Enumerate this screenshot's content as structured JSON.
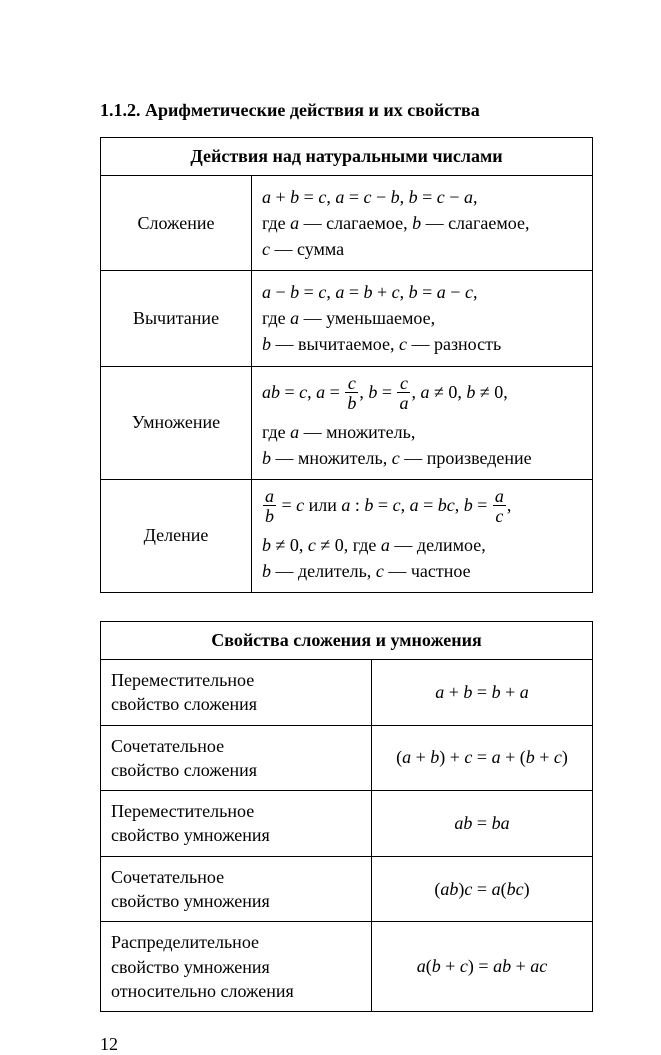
{
  "section_title": "1.1.2. Арифметические действия и их свойства",
  "table1": {
    "header": "Действия над натуральными числами",
    "rows": [
      {
        "op": "Сложение",
        "line1_html": "<span class='math'>a</span> + <span class='math'>b</span> = <span class='math'>c</span>, <span class='math'>a</span> = <span class='math'>c</span> − <span class='math'>b</span>, <span class='math'>b</span> = <span class='math'>c</span> − <span class='math'>a</span>,",
        "line2_html": "где <span class='math'>a</span> — слагаемое, <span class='math'>b</span> — слагаемое,",
        "line3_html": "<span class='math'>c</span> — сумма"
      },
      {
        "op": "Вычитание",
        "line1_html": "<span class='math'>a</span> − <span class='math'>b</span> = <span class='math'>c</span>, <span class='math'>a</span> = <span class='math'>b</span> + <span class='math'>c</span>, <span class='math'>b</span> = <span class='math'>a</span> − <span class='math'>c</span>,",
        "line2_html": "где <span class='math'>a</span> — уменьшаемое,",
        "line3_html": "<span class='math'>b</span> — вычитаемое, <span class='math'>c</span> — разность"
      },
      {
        "op": "Умножение",
        "line1_html": "<span class='math'>ab</span> = <span class='math'>c</span>, <span class='math'>a</span> = <span class='frac'><span class='num'>c</span><span class='den'>b</span></span>, <span class='math'>b</span> = <span class='frac'><span class='num'>c</span><span class='den'>a</span></span>, <span class='math'>a</span> ≠ 0, <span class='math'>b</span> ≠ 0,",
        "line2_html": "где <span class='math'>a</span> — множитель,",
        "line3_html": "<span class='math'>b</span> — множитель, <span class='math'>c</span> — произведение"
      },
      {
        "op": "Деление",
        "line1_html": "<span class='frac'><span class='num'>a</span><span class='den'>b</span></span> = <span class='math'>c</span> или <span class='math'>a</span> : <span class='math'>b</span> = <span class='math'>c</span>, <span class='math'>a</span> = <span class='math'>bc</span>, <span class='math'>b</span> = <span class='frac'><span class='num'>a</span><span class='den'>c</span></span>,",
        "line2_html": "<span class='math'>b</span> ≠ 0, <span class='math'>c</span> ≠ 0, где <span class='math'>a</span> — делимое,",
        "line3_html": "<span class='math'>b</span> — делитель, <span class='math'>c</span> — частное"
      }
    ]
  },
  "table2": {
    "header": "Свойства сложения и умножения",
    "rows": [
      {
        "name_html": "Переместительное<br>свойство сложения",
        "formula_html": "<span class='math'>a</span> + <span class='math'>b</span> = <span class='math'>b</span> + <span class='math'>a</span>"
      },
      {
        "name_html": "Сочетательное<br>свойство сложения",
        "formula_html": "(<span class='math'>a</span> + <span class='math'>b</span>) + <span class='math'>c</span> = <span class='math'>a</span> + (<span class='math'>b</span> + <span class='math'>c</span>)"
      },
      {
        "name_html": "Переместительное<br>свойство умножения",
        "formula_html": "<span class='math'>ab</span> = <span class='math'>ba</span>"
      },
      {
        "name_html": "Сочетательное<br>свойство умножения",
        "formula_html": "(<span class='math'>ab</span>)<span class='math'>c</span> = <span class='math'>a</span>(<span class='math'>bc</span>)"
      },
      {
        "name_html": "Распределительное<br>свойство умножения<br>относительно сложения",
        "formula_html": "<span class='math'>a</span>(<span class='math'>b</span> + <span class='math'>c</span>) = <span class='math'>ab</span> + <span class='math'>ac</span>"
      }
    ]
  },
  "page_number": "12"
}
